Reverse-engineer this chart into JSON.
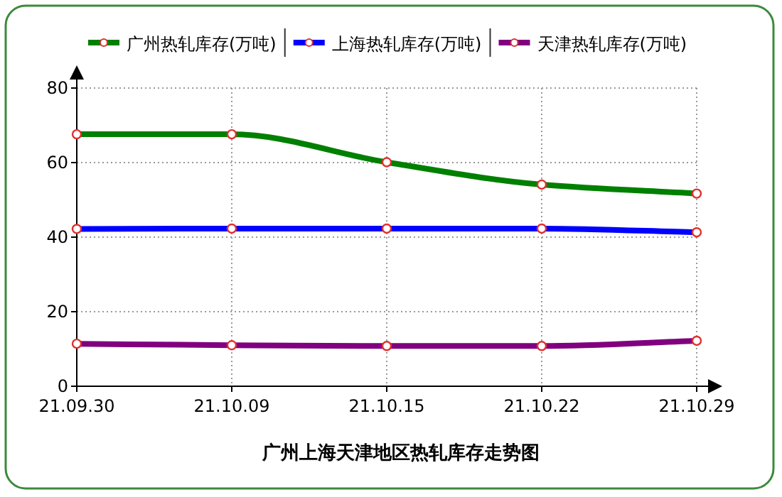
{
  "chart_data": {
    "type": "line",
    "title": "广州上海天津地区热轧库存走势图",
    "categories": [
      "21.09.30",
      "21.10.09",
      "21.10.15",
      "21.10.22",
      "21.10.29"
    ],
    "series": [
      {
        "name": "广州热轧库存(万吨)",
        "color": "#008000",
        "values": [
          67.6,
          67.6,
          60.1,
          54.1,
          51.7
        ]
      },
      {
        "name": "上海热轧库存(万吨)",
        "color": "#0000ff",
        "values": [
          42.2,
          42.3,
          42.3,
          42.3,
          41.3
        ]
      },
      {
        "name": "天津热轧库存(万吨)",
        "color": "#800080",
        "values": [
          11.4,
          11.0,
          10.8,
          10.8,
          12.2
        ]
      }
    ],
    "ylim": [
      0,
      80
    ],
    "yticks": [
      0,
      20,
      40,
      60,
      80
    ],
    "grid": true,
    "legend": "top",
    "marker": "circle",
    "line_style": "solid"
  }
}
